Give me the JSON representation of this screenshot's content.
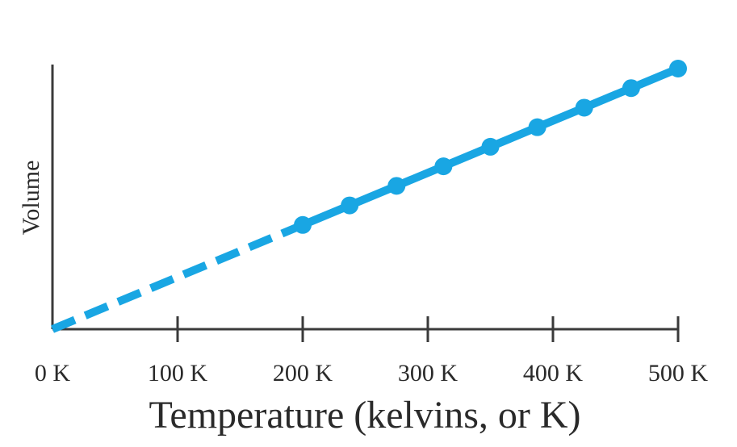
{
  "chart_data": {
    "type": "line",
    "title": "",
    "xlabel": "Temperature (kelvins, or K)",
    "ylabel": "Volume",
    "xlim": [
      0,
      500
    ],
    "ylim": [
      0,
      1
    ],
    "x_ticks": [
      0,
      100,
      200,
      300,
      400,
      500
    ],
    "x_tick_labels": [
      "0 K",
      "100 K",
      "200 K",
      "300 K",
      "400 K",
      "500 K"
    ],
    "series": [
      {
        "color": "#19a6e3",
        "points": [
          {
            "x": 200,
            "y": 0.4
          },
          {
            "x": 237.5,
            "y": 0.475
          },
          {
            "x": 275,
            "y": 0.55
          },
          {
            "x": 312.5,
            "y": 0.625
          },
          {
            "x": 350,
            "y": 0.7
          },
          {
            "x": 387.5,
            "y": 0.775
          },
          {
            "x": 425,
            "y": 0.85
          },
          {
            "x": 462.5,
            "y": 0.925
          },
          {
            "x": 500,
            "y": 1.0
          }
        ],
        "extrapolation": {
          "from": [
            0,
            0
          ],
          "to": [
            200,
            0.4
          ],
          "style": "dashed"
        }
      }
    ],
    "grid": false,
    "legend": "none"
  }
}
